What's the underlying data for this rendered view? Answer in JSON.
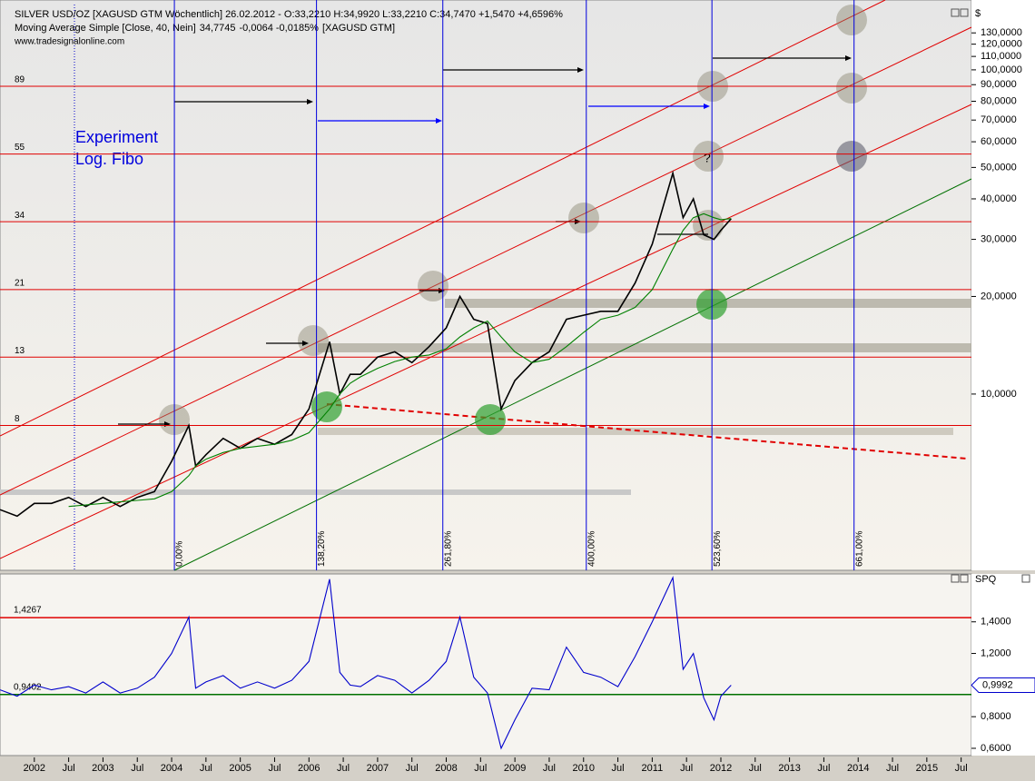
{
  "chart_data": [
    {
      "type": "line",
      "source": "www.tradesignalonline.com",
      "y_label": "$",
      "yscale": "log",
      "xlim": [
        2001.5,
        2015.65
      ],
      "ylim": [
        2.86,
        159
      ],
      "yticks": [
        {
          "value": 10,
          "label": "10,0000"
        },
        {
          "value": 20,
          "label": "20,0000"
        },
        {
          "value": 30,
          "label": "30,0000"
        },
        {
          "value": 40,
          "label": "40,0000"
        },
        {
          "value": 50,
          "label": "50,0000"
        },
        {
          "value": 60,
          "label": "60,0000"
        },
        {
          "value": 70,
          "label": "70,0000"
        },
        {
          "value": 80,
          "label": "80,0000"
        },
        {
          "value": 90,
          "label": "90,0000"
        },
        {
          "value": 100,
          "label": "100,0000"
        },
        {
          "value": 110,
          "label": "110,0000"
        },
        {
          "value": 120,
          "label": "120,0000"
        },
        {
          "value": 130,
          "label": "130,0000"
        }
      ],
      "x": [
        2001.5,
        2001.75,
        2002.0,
        2002.25,
        2002.5,
        2002.75,
        2003.0,
        2003.25,
        2003.5,
        2003.75,
        2004.0,
        2004.25,
        2004.35,
        2004.5,
        2004.75,
        2005.0,
        2005.25,
        2005.5,
        2005.75,
        2006.0,
        2006.3,
        2006.45,
        2006.6,
        2006.75,
        2007.0,
        2007.25,
        2007.5,
        2007.75,
        2008.0,
        2008.2,
        2008.4,
        2008.6,
        2008.8,
        2009.0,
        2009.25,
        2009.5,
        2009.75,
        2010.0,
        2010.25,
        2010.5,
        2010.75,
        2011.0,
        2011.3,
        2011.45,
        2011.6,
        2011.75,
        2011.9,
        2012.0,
        2012.15
      ],
      "series": [
        {
          "name": "SILVER USD/OZ [XAGUSD GTM  Wöchentlich] 26.02.2012 - O:33,2210 H:34,9920 L:33,2210 C:34,7470 +1,5470 +4,6596%",
          "color": "#000000",
          "values": [
            4.4,
            4.2,
            4.6,
            4.6,
            4.8,
            4.5,
            4.8,
            4.5,
            4.8,
            5.0,
            6.2,
            8.0,
            6.0,
            6.5,
            7.3,
            6.8,
            7.3,
            7.0,
            7.5,
            9.0,
            14.5,
            10.0,
            11.5,
            11.5,
            13.0,
            13.5,
            12.5,
            14.0,
            16.0,
            20.0,
            17.0,
            16.5,
            9.0,
            11.0,
            12.5,
            13.5,
            17.0,
            17.5,
            18.0,
            18.0,
            22.0,
            29.0,
            48.0,
            35.0,
            40.0,
            31.0,
            30.0,
            32.0,
            34.747
          ]
        },
        {
          "name": "Moving Average Simple [Close, 40, Nein]",
          "color": "#008000",
          "legend_values": [
            "34,7745",
            "-0,0064 -0,0185%",
            "[XAGUSD GTM]"
          ],
          "values": [
            null,
            null,
            null,
            null,
            4.5,
            4.55,
            4.6,
            4.65,
            4.7,
            4.75,
            5.0,
            5.6,
            6.0,
            6.3,
            6.6,
            6.8,
            6.9,
            7.0,
            7.2,
            7.6,
            9.0,
            10.0,
            10.8,
            11.3,
            12.0,
            12.6,
            13.0,
            13.2,
            13.8,
            15.0,
            16.0,
            16.8,
            15.0,
            13.5,
            12.5,
            12.8,
            14.0,
            15.5,
            17.0,
            17.5,
            18.5,
            21.0,
            28.0,
            32.0,
            35.0,
            36.0,
            35.0,
            34.5,
            34.7745
          ]
        }
      ],
      "fib_levels": {
        "color": "#e00000",
        "values": [
          8,
          13,
          21,
          34,
          55,
          89
        ]
      },
      "time_fibs": [
        {
          "x": 2004.04,
          "label": "0,00%"
        },
        {
          "x": 2006.11,
          "label": "138,20%"
        },
        {
          "x": 2007.95,
          "label": "261,80%"
        },
        {
          "x": 2010.04,
          "label": "400,00%"
        },
        {
          "x": 2011.87,
          "label": "523,60%"
        },
        {
          "x": 2013.94,
          "label": "661,00%"
        }
      ],
      "annotations": [
        "Experiment",
        "Log. Fibo",
        "?"
      ]
    },
    {
      "type": "line",
      "y_label": "SPQ",
      "xlim": [
        2001.5,
        2015.65
      ],
      "ylim": [
        0.554,
        1.703
      ],
      "yticks": [
        {
          "value": 0.6,
          "label": "0,6000"
        },
        {
          "value": 0.8,
          "label": "0,8000"
        },
        {
          "value": 1.2,
          "label": "1,2000"
        },
        {
          "value": 1.4,
          "label": "1,4000"
        }
      ],
      "xticks": [
        {
          "value": 2002,
          "label": "2002"
        },
        {
          "value": 2002.5,
          "label": "Jul"
        },
        {
          "value": 2003,
          "label": "2003"
        },
        {
          "value": 2003.5,
          "label": "Jul"
        },
        {
          "value": 2004,
          "label": "2004"
        },
        {
          "value": 2004.5,
          "label": "Jul"
        },
        {
          "value": 2005,
          "label": "2005"
        },
        {
          "value": 2005.5,
          "label": "Jul"
        },
        {
          "value": 2006,
          "label": "2006"
        },
        {
          "value": 2006.5,
          "label": "Jul"
        },
        {
          "value": 2007,
          "label": "2007"
        },
        {
          "value": 2007.5,
          "label": "Jul"
        },
        {
          "value": 2008,
          "label": "2008"
        },
        {
          "value": 2008.5,
          "label": "Jul"
        },
        {
          "value": 2009,
          "label": "2009"
        },
        {
          "value": 2009.5,
          "label": "Jul"
        },
        {
          "value": 2010,
          "label": "2010"
        },
        {
          "value": 2010.5,
          "label": "Jul"
        },
        {
          "value": 2011,
          "label": "2011"
        },
        {
          "value": 2011.5,
          "label": "Jul"
        },
        {
          "value": 2012,
          "label": "2012"
        },
        {
          "value": 2012.5,
          "label": "Jul"
        },
        {
          "value": 2013,
          "label": "2013"
        },
        {
          "value": 2013.5,
          "label": "Jul"
        },
        {
          "value": 2014,
          "label": "2014"
        },
        {
          "value": 2014.5,
          "label": "Jul"
        },
        {
          "value": 2015,
          "label": "2015"
        },
        {
          "value": 2015.5,
          "label": "Jul"
        }
      ],
      "x": [
        2001.5,
        2001.75,
        2002.0,
        2002.25,
        2002.5,
        2002.75,
        2003.0,
        2003.25,
        2003.5,
        2003.75,
        2004.0,
        2004.25,
        2004.35,
        2004.5,
        2004.75,
        2005.0,
        2005.25,
        2005.5,
        2005.75,
        2006.0,
        2006.3,
        2006.45,
        2006.6,
        2006.75,
        2007.0,
        2007.25,
        2007.5,
        2007.75,
        2008.0,
        2008.2,
        2008.4,
        2008.6,
        2008.8,
        2009.0,
        2009.25,
        2009.5,
        2009.75,
        2010.0,
        2010.25,
        2010.5,
        2010.75,
        2011.0,
        2011.3,
        2011.45,
        2011.6,
        2011.75,
        2011.9,
        2012.0,
        2012.15
      ],
      "series": [
        {
          "color": "#0000cc",
          "values": [
            0.97,
            0.93,
            1.0,
            0.97,
            0.99,
            0.95,
            1.02,
            0.95,
            0.98,
            1.05,
            1.2,
            1.43,
            0.98,
            1.02,
            1.06,
            0.98,
            1.02,
            0.98,
            1.03,
            1.15,
            1.67,
            1.08,
            1.0,
            0.99,
            1.06,
            1.03,
            0.95,
            1.03,
            1.15,
            1.43,
            1.05,
            0.95,
            0.6,
            0.78,
            0.98,
            0.97,
            1.24,
            1.08,
            1.05,
            0.99,
            1.18,
            1.4,
            1.68,
            1.1,
            1.2,
            0.92,
            0.78,
            0.93,
            0.9992
          ]
        }
      ],
      "levels": [
        {
          "value": 1.4267,
          "label": "1,4267",
          "color": "#e00000"
        },
        {
          "value": 0.9402,
          "label": "0,9402",
          "color": "#007000"
        }
      ],
      "last_value": {
        "value": 0.9992,
        "label": "0,9992"
      }
    }
  ]
}
